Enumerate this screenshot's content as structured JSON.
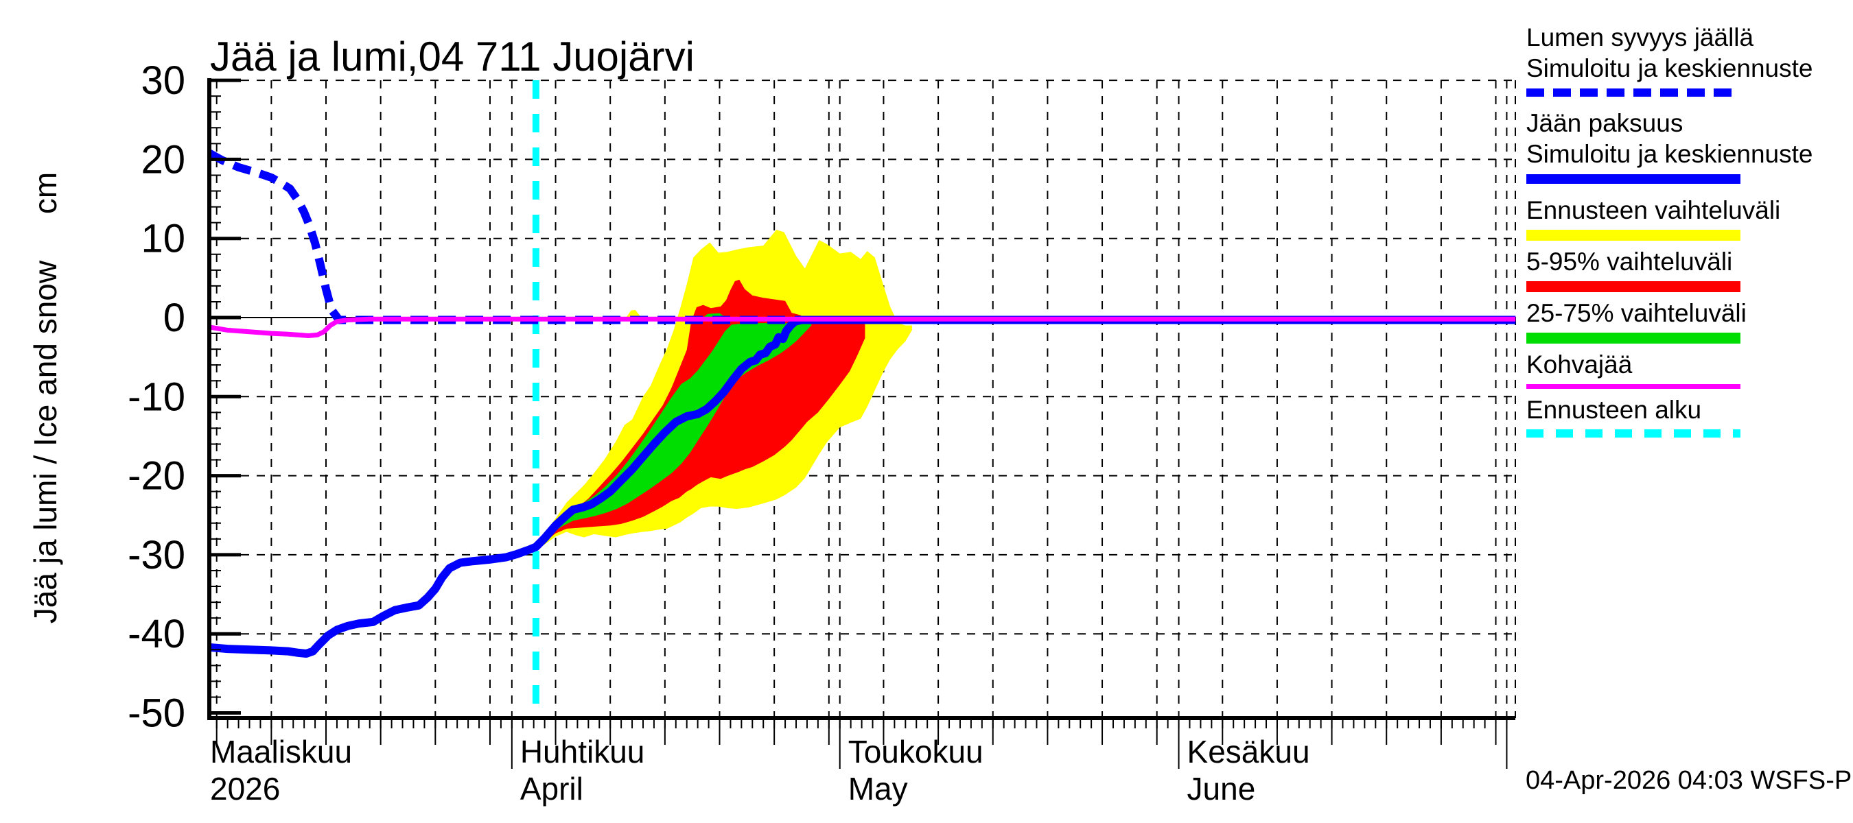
{
  "title": "Jää ja lumi,04 711 Juojärvi",
  "footer": {
    "timestamp": "04-Apr-2026 04:03 WSFS-P"
  },
  "colors": {
    "snow_line": "#0000ff",
    "ice_line": "#0000ff",
    "kohva_line": "#ff00ff",
    "forecast_start_line": "#00ffff",
    "band_total": "#ffff00",
    "band_5_95": "#ff0000",
    "band_25_75": "#00dd00",
    "axis": "#000000"
  },
  "legend": {
    "items": [
      {
        "lines": [
          "Lumen syvyys jäällä",
          "Simuloitu ja keskiennuste"
        ],
        "swatch": "sw-dashed-blue",
        "name": "snow-depth-simulated"
      },
      {
        "lines": [
          "Jään paksuus",
          "Simuloitu ja keskiennuste"
        ],
        "swatch": "sw-solid-blue",
        "name": "ice-thickness-simulated"
      },
      {
        "lines": [
          "Ennusteen vaihteluväli"
        ],
        "swatch": "sw-yellow",
        "name": "forecast-range"
      },
      {
        "lines": [
          "5-95% vaihteluväli"
        ],
        "swatch": "sw-red",
        "name": "range-5-95"
      },
      {
        "lines": [
          "25-75% vaihteluväli"
        ],
        "swatch": "sw-green",
        "name": "range-25-75"
      },
      {
        "lines": [
          "Kohvajää"
        ],
        "swatch": "sw-magenta",
        "name": "slush-ice"
      },
      {
        "lines": [
          "Ennusteen alku"
        ],
        "swatch": "sw-cyan",
        "name": "forecast-start"
      }
    ]
  },
  "chart_data": {
    "type": "line",
    "title": "Jää ja lumi,04 711 Juojärvi",
    "ylabel": "Jää ja lumi / Ice and snow",
    "ylabel_unit": "cm",
    "ylim": [
      -50,
      30
    ],
    "y_major_ticks": [
      30,
      20,
      10,
      0,
      -10,
      -20,
      -30,
      -40,
      -50
    ],
    "y_minor_step": 2,
    "grid": "dashed black, 5-day vertical and 10 cm horizontal",
    "x_axis": {
      "unit": "days since 2026-03-01",
      "range": [
        3.3,
        122.8
      ],
      "months": [
        {
          "day": 0,
          "label_fi": "Maaliskuu",
          "label_en": "2026"
        },
        {
          "day": 31,
          "label_fi": "Huhtikuu",
          "label_en": "April"
        },
        {
          "day": 61,
          "label_fi": "Toukokuu",
          "label_en": "May"
        },
        {
          "day": 92,
          "label_fi": "Kesäkuu",
          "label_en": "June"
        },
        {
          "day": 122,
          "label_fi": "",
          "label_en": ""
        }
      ],
      "five_day_marks": [
        4,
        9,
        14,
        19,
        24,
        29,
        35,
        40,
        45,
        50,
        55,
        60,
        65,
        70,
        75,
        80,
        85,
        90,
        96,
        101,
        106,
        111,
        116,
        121
      ]
    },
    "forecast_start_day": 33.2,
    "series": [
      {
        "name": "Lumen syvyys jäällä - Simuloitu ja keskiennuste",
        "style": "dashed",
        "color": "#0000ff",
        "width": 12,
        "points": [
          [
            3.3,
            20.8
          ],
          [
            4.5,
            19.9
          ],
          [
            6,
            19.0
          ],
          [
            7.5,
            18.4
          ],
          [
            9,
            17.7
          ],
          [
            10,
            16.9
          ],
          [
            10.7,
            16.3
          ],
          [
            11.4,
            14.9
          ],
          [
            12,
            13.3
          ],
          [
            12.5,
            11.6
          ],
          [
            13,
            9.4
          ],
          [
            13.5,
            6.6
          ],
          [
            14,
            3.6
          ],
          [
            14.5,
            1.0
          ],
          [
            15.2,
            -0.3
          ],
          [
            122.8,
            -0.3
          ]
        ]
      },
      {
        "name": "Jään paksuus - Simuloitu ja keskiennuste",
        "style": "solid",
        "color": "#0000ff",
        "width": 12,
        "points": [
          [
            3.3,
            -41.7
          ],
          [
            5,
            -41.9
          ],
          [
            7,
            -42.0
          ],
          [
            9,
            -42.1
          ],
          [
            10.5,
            -42.2
          ],
          [
            11.5,
            -42.4
          ],
          [
            12.2,
            -42.5
          ],
          [
            12.8,
            -42.2
          ],
          [
            13.4,
            -41.3
          ],
          [
            14.2,
            -40.2
          ],
          [
            15,
            -39.5
          ],
          [
            16,
            -39.0
          ],
          [
            17,
            -38.7
          ],
          [
            18.3,
            -38.5
          ],
          [
            19.3,
            -37.7
          ],
          [
            20.3,
            -37.0
          ],
          [
            21.3,
            -36.7
          ],
          [
            22.5,
            -36.4
          ],
          [
            23.3,
            -35.4
          ],
          [
            24,
            -34.3
          ],
          [
            24.6,
            -32.9
          ],
          [
            25.3,
            -31.7
          ],
          [
            26.3,
            -31.0
          ],
          [
            27.5,
            -30.8
          ],
          [
            29,
            -30.6
          ],
          [
            30.5,
            -30.3
          ],
          [
            31.5,
            -29.9
          ],
          [
            32.5,
            -29.4
          ],
          [
            33.2,
            -29.0
          ],
          [
            34,
            -27.9
          ],
          [
            35,
            -26.3
          ],
          [
            36,
            -25.0
          ],
          [
            36.6,
            -24.3
          ],
          [
            37.5,
            -24.0
          ],
          [
            38.3,
            -23.6
          ],
          [
            39.2,
            -22.8
          ],
          [
            40,
            -22.0
          ],
          [
            41,
            -20.6
          ],
          [
            42,
            -19.2
          ],
          [
            43,
            -17.6
          ],
          [
            44,
            -16.0
          ],
          [
            45,
            -14.5
          ],
          [
            46,
            -13.2
          ],
          [
            47,
            -12.5
          ],
          [
            48,
            -12.2
          ],
          [
            48.8,
            -11.6
          ],
          [
            49.6,
            -10.6
          ],
          [
            50.4,
            -9.4
          ],
          [
            51.2,
            -7.9
          ],
          [
            52,
            -6.5
          ],
          [
            52.8,
            -5.6
          ],
          [
            53.3,
            -5.4
          ],
          [
            53.7,
            -4.7
          ],
          [
            54.2,
            -4.5
          ],
          [
            54.6,
            -3.7
          ],
          [
            55.1,
            -3.4
          ],
          [
            55.4,
            -2.5
          ],
          [
            55.8,
            -2.7
          ],
          [
            56.1,
            -1.7
          ],
          [
            56.5,
            -1.0
          ],
          [
            56.9,
            -0.5
          ],
          [
            57.5,
            -0.3
          ],
          [
            122.8,
            -0.3
          ]
        ]
      },
      {
        "name": "Kohvajää",
        "style": "solid",
        "color": "#ff00ff",
        "width": 7,
        "points": [
          [
            3.3,
            -1.2
          ],
          [
            5,
            -1.6
          ],
          [
            7,
            -1.8
          ],
          [
            9,
            -2.0
          ],
          [
            10.5,
            -2.1
          ],
          [
            11.5,
            -2.2
          ],
          [
            12.4,
            -2.3
          ],
          [
            13.2,
            -2.2
          ],
          [
            13.8,
            -1.8
          ],
          [
            14.4,
            -1.0
          ],
          [
            15,
            -0.5
          ],
          [
            16,
            -0.3
          ],
          [
            18,
            -0.2
          ],
          [
            122.8,
            -0.2
          ]
        ]
      }
    ],
    "bands": [
      {
        "name": "Ennusteen vaihteluväli",
        "color": "#ffff00",
        "points": [
          [
            33.3,
            -29.3,
            -28.7
          ],
          [
            34,
            -28.7,
            -27.3
          ],
          [
            35,
            -27.7,
            -25.4
          ],
          [
            36,
            -27.1,
            -23.4
          ],
          [
            36.8,
            -27.5,
            -22.3
          ],
          [
            37.6,
            -27.8,
            -21.2
          ],
          [
            38.5,
            -27.4,
            -19.7
          ],
          [
            39.5,
            -27.6,
            -17.9
          ],
          [
            40.5,
            -27.8,
            -15.7
          ],
          [
            41.3,
            -27.5,
            -13.6
          ],
          [
            42,
            -27.3,
            -12.9
          ],
          [
            43,
            -27.1,
            -10.0
          ],
          [
            43.7,
            -27.0,
            -8.6
          ],
          [
            44.5,
            -26.8,
            -6.0
          ],
          [
            45.2,
            -26.7,
            -3.9
          ],
          [
            45.8,
            -26.3,
            -1.6
          ],
          [
            46.4,
            -25.9,
            1.2
          ],
          [
            47,
            -25.3,
            4.2
          ],
          [
            47.6,
            -24.8,
            7.6
          ],
          [
            48.3,
            -24.1,
            8.6
          ],
          [
            49.1,
            -23.9,
            9.5
          ],
          [
            49.9,
            -23.9,
            8.2
          ],
          [
            50.7,
            -24.1,
            8.3
          ],
          [
            51.6,
            -24.2,
            8.6
          ],
          [
            52.7,
            -24.0,
            8.9
          ],
          [
            54,
            -23.5,
            9.1
          ],
          [
            55.2,
            -23.0,
            11.1
          ],
          [
            55.9,
            -22.5,
            10.8
          ],
          [
            57,
            -21.5,
            7.8
          ],
          [
            57.8,
            -20.3,
            6.2
          ],
          [
            59.1,
            -17.3,
            9.8
          ],
          [
            59.8,
            -15.8,
            9.3
          ],
          [
            61,
            -13.9,
            8.1
          ],
          [
            62,
            -13.3,
            8.3
          ],
          [
            62.9,
            -12.8,
            7.4
          ],
          [
            63.5,
            -11.3,
            8.4
          ],
          [
            64.2,
            -9.2,
            7.6
          ],
          [
            65,
            -6.8,
            4.0
          ],
          [
            65.6,
            -5.3,
            1.4
          ],
          [
            66.3,
            -4.0,
            -0.7
          ],
          [
            67,
            -3.0,
            -1.0
          ],
          [
            67.6,
            -1.6,
            -1.0
          ]
        ]
      },
      {
        "name": "5-95% vaihteluväli",
        "color": "#ff0000",
        "points": [
          [
            33.3,
            -29.2,
            -28.9
          ],
          [
            34,
            -28.4,
            -27.8
          ],
          [
            35,
            -27.3,
            -26.4
          ],
          [
            36,
            -26.7,
            -25.2
          ],
          [
            37,
            -26.6,
            -24.0
          ],
          [
            38,
            -26.5,
            -22.9
          ],
          [
            39,
            -26.4,
            -21.4
          ],
          [
            40,
            -26.3,
            -19.9
          ],
          [
            41,
            -26.1,
            -18.3
          ],
          [
            42,
            -25.7,
            -16.5
          ],
          [
            43,
            -25.2,
            -14.7
          ],
          [
            44,
            -24.5,
            -12.7
          ],
          [
            44.8,
            -23.9,
            -11.1
          ],
          [
            45.6,
            -23.2,
            -8.9
          ],
          [
            46.3,
            -22.8,
            -6.5
          ],
          [
            47,
            -22.0,
            -4.1
          ],
          [
            47.4,
            -21.7,
            -0.5
          ],
          [
            47.9,
            -21.2,
            1.3
          ],
          [
            48.5,
            -20.7,
            1.6
          ],
          [
            49.2,
            -20.2,
            1.2
          ],
          [
            50.1,
            -20.4,
            1.4
          ],
          [
            50.6,
            -20.1,
            2.2
          ],
          [
            51,
            -19.9,
            3.5
          ],
          [
            51.4,
            -19.7,
            4.6
          ],
          [
            51.8,
            -19.5,
            4.8
          ],
          [
            52.3,
            -19.2,
            3.6
          ],
          [
            53,
            -18.9,
            2.8
          ],
          [
            54,
            -18.2,
            2.5
          ],
          [
            55,
            -17.4,
            2.3
          ],
          [
            56,
            -16.3,
            2.1
          ],
          [
            56.6,
            -15.5,
            0.6
          ],
          [
            57.4,
            -14.2,
            0.3
          ],
          [
            58,
            -13.2,
            -0.4
          ],
          [
            59,
            -12.0,
            -0.5
          ],
          [
            60,
            -10.3,
            -0.6
          ],
          [
            61,
            -8.5,
            -0.6
          ],
          [
            61.9,
            -6.8,
            -0.7
          ],
          [
            62.6,
            -4.8,
            -0.7
          ],
          [
            63.3,
            -2.6,
            -0.8
          ]
        ]
      },
      {
        "name": "25-75% vaihteluväli",
        "color": "#00dd00",
        "points": [
          [
            34.6,
            -27.3,
            -26.8
          ],
          [
            35.6,
            -26.4,
            -25.5
          ],
          [
            36.6,
            -25.7,
            -24.3
          ],
          [
            37.6,
            -25.4,
            -23.4
          ],
          [
            38.6,
            -25.1,
            -22.5
          ],
          [
            39.6,
            -24.7,
            -21.3
          ],
          [
            40.6,
            -24.2,
            -19.9
          ],
          [
            41.6,
            -23.5,
            -18.2
          ],
          [
            42.6,
            -22.6,
            -16.3
          ],
          [
            43.6,
            -21.7,
            -14.3
          ],
          [
            44.6,
            -20.7,
            -12.2
          ],
          [
            45.6,
            -19.7,
            -10.1
          ],
          [
            46.5,
            -18.5,
            -8.4
          ],
          [
            47.3,
            -17.1,
            -7.7
          ],
          [
            48,
            -15.6,
            -6.7
          ],
          [
            48.7,
            -14.1,
            -5.4
          ],
          [
            49.3,
            -12.8,
            -4.3
          ],
          [
            49.9,
            -11.4,
            -3.0
          ],
          [
            50.5,
            -10.0,
            -1.7
          ],
          [
            51.1,
            -8.7,
            -0.9
          ],
          [
            51.7,
            -7.7,
            -0.8
          ],
          [
            52.5,
            -6.9,
            -0.7
          ],
          [
            53.5,
            -6.1,
            -0.7
          ],
          [
            54.5,
            -5.4,
            -0.7
          ],
          [
            55.5,
            -4.6,
            -0.7
          ],
          [
            56.3,
            -3.8,
            -0.7
          ],
          [
            57,
            -3.0,
            -0.7
          ],
          [
            57.7,
            -2.0,
            -0.8
          ],
          [
            58.4,
            -1.0,
            -0.8
          ]
        ]
      },
      {
        "name": "Ennusteen vaihteluväli (lumi, lyhyt piikki)",
        "color": "#ffff00",
        "points": [
          [
            41.4,
            -0.2,
            -0.1
          ],
          [
            41.9,
            -0.2,
            0.9
          ],
          [
            42.3,
            -0.2,
            0.95
          ],
          [
            42.9,
            -0.2,
            -0.1
          ]
        ]
      },
      {
        "name": "25-75% vaihteluväli (lumi, kapea kaista)",
        "color": "#00dd00",
        "points": [
          [
            48.4,
            -0.2,
            -0.1
          ],
          [
            48.9,
            -0.2,
            0.45
          ],
          [
            50.0,
            -0.2,
            0.55
          ],
          [
            50.7,
            -0.2,
            -0.1
          ]
        ]
      }
    ]
  }
}
